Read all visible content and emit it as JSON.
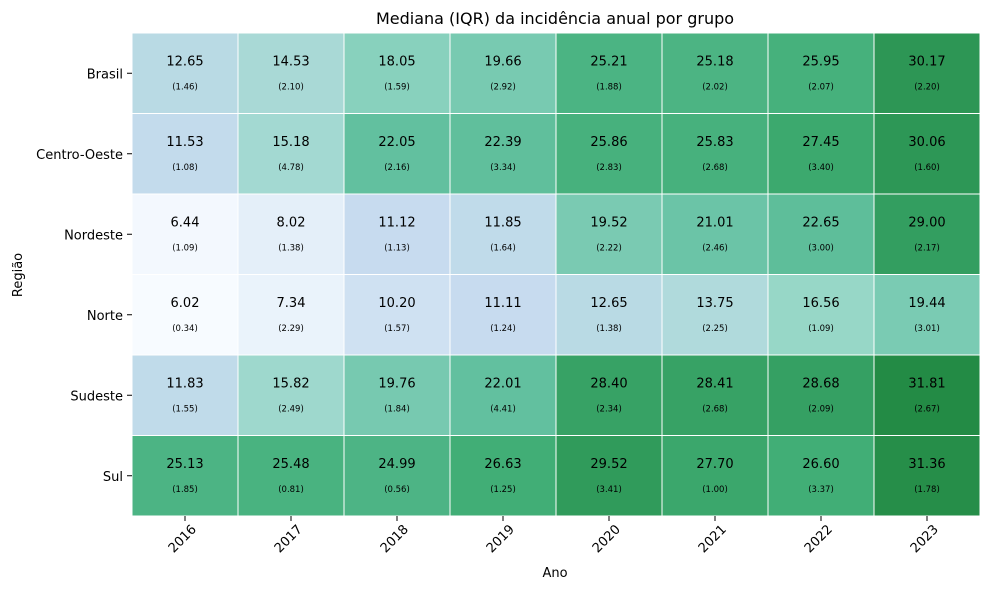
{
  "chart_data": {
    "type": "heatmap",
    "title": "Mediana (IQR) da incidência anual por grupo",
    "xlabel": "Ano",
    "ylabel": "Região",
    "x_categories": [
      "2016",
      "2017",
      "2018",
      "2019",
      "2020",
      "2021",
      "2022",
      "2023"
    ],
    "y_categories": [
      "Brasil",
      "Centro-Oeste",
      "Nordeste",
      "Norte",
      "Sudeste",
      "Sul"
    ],
    "values": [
      [
        12.65,
        14.53,
        18.05,
        19.66,
        25.21,
        25.18,
        25.95,
        30.17
      ],
      [
        11.53,
        15.18,
        22.05,
        22.39,
        25.86,
        25.83,
        27.45,
        30.06
      ],
      [
        6.44,
        8.02,
        11.12,
        11.85,
        19.52,
        21.01,
        22.65,
        29.0
      ],
      [
        6.02,
        7.34,
        10.2,
        11.11,
        12.65,
        13.75,
        16.56,
        19.44
      ],
      [
        11.83,
        15.82,
        19.76,
        22.01,
        28.4,
        28.41,
        28.68,
        31.81
      ],
      [
        25.13,
        25.48,
        24.99,
        26.63,
        29.52,
        27.7,
        26.6,
        31.36
      ]
    ],
    "value_labels": [
      [
        "12.65",
        "14.53",
        "18.05",
        "19.66",
        "25.21",
        "25.18",
        "25.95",
        "30.17"
      ],
      [
        "11.53",
        "15.18",
        "22.05",
        "22.39",
        "25.86",
        "25.83",
        "27.45",
        "30.06"
      ],
      [
        "6.44",
        "8.02",
        "11.12",
        "11.85",
        "19.52",
        "21.01",
        "22.65",
        "29.00"
      ],
      [
        "6.02",
        "7.34",
        "10.20",
        "11.11",
        "12.65",
        "13.75",
        "16.56",
        "19.44"
      ],
      [
        "11.83",
        "15.82",
        "19.76",
        "22.01",
        "28.40",
        "28.41",
        "28.68",
        "31.81"
      ],
      [
        "25.13",
        "25.48",
        "24.99",
        "26.63",
        "29.52",
        "27.70",
        "26.60",
        "31.36"
      ]
    ],
    "iqr_labels": [
      [
        "(1.46)",
        "(2.10)",
        "(1.59)",
        "(2.92)",
        "(1.88)",
        "(2.02)",
        "(2.07)",
        "(2.20)"
      ],
      [
        "(1.08)",
        "(4.78)",
        "(2.16)",
        "(3.34)",
        "(2.83)",
        "(2.68)",
        "(3.40)",
        "(1.60)"
      ],
      [
        "(1.09)",
        "(1.38)",
        "(1.13)",
        "(1.64)",
        "(2.22)",
        "(2.46)",
        "(3.00)",
        "(2.17)"
      ],
      [
        "(0.34)",
        "(2.29)",
        "(1.57)",
        "(1.24)",
        "(1.38)",
        "(2.25)",
        "(1.09)",
        "(3.01)"
      ],
      [
        "(1.55)",
        "(2.49)",
        "(1.84)",
        "(4.41)",
        "(2.34)",
        "(2.68)",
        "(2.09)",
        "(2.67)"
      ],
      [
        "(1.85)",
        "(0.81)",
        "(0.56)",
        "(1.25)",
        "(3.41)",
        "(1.00)",
        "(3.37)",
        "(1.78)"
      ]
    ],
    "color_scale": [
      "#f7fbff",
      "#c6dbef",
      "#99d8c9",
      "#66c2a4",
      "#41ae76",
      "#238b45"
    ],
    "grid": false,
    "legend": "none"
  }
}
